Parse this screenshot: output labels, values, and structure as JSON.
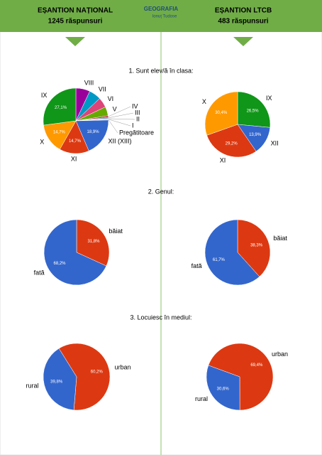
{
  "header": {
    "left": {
      "title": "EȘANTION NAȚIONAL",
      "subtitle": "1245 răspunsuri"
    },
    "logo": {
      "title": "GEOGRAFIA",
      "subtitle": "Ionuț Tudose"
    },
    "right": {
      "title": "EȘANTION LTCB",
      "subtitle": "483 răspunsuri"
    }
  },
  "sections": [
    "1. Sunt elev/ă în clasa:",
    "2. Genul:",
    "3. Locuiesc în mediul:"
  ],
  "chart_data": [
    {
      "type": "pie",
      "categories": [
        "VIII",
        "VII",
        "VI",
        "V",
        "IV",
        "III",
        "II",
        "I",
        "Pregătitoare",
        "XII (XIII)",
        "XI",
        "X",
        "IX"
      ],
      "values": [
        7,
        6,
        5,
        4.5,
        0.8,
        0.5,
        0.3,
        0.3,
        0.2,
        18.9,
        14.7,
        14.7,
        27.1
      ],
      "value_labels": [
        null,
        null,
        null,
        null,
        null,
        null,
        null,
        null,
        null,
        "18,9%",
        "14,7%",
        "14,7%",
        "27,1%"
      ],
      "colors": [
        "#990099",
        "#0099c6",
        "#dd4477",
        "#66aa00",
        "#b82e2e",
        "#316395",
        "#994499",
        "#22aa99",
        "#aaaa11",
        "#3366cc",
        "#dc3912",
        "#ff9900",
        "#109618"
      ]
    },
    {
      "type": "pie",
      "categories": [
        "IX",
        "XII",
        "XI",
        "X"
      ],
      "values": [
        26.5,
        13.9,
        29.2,
        30.4
      ],
      "value_labels": [
        "26,5%",
        "13,9%",
        "29,2%",
        "30,4%"
      ],
      "colors": [
        "#109618",
        "#3366cc",
        "#dc3912",
        "#ff9900"
      ]
    },
    {
      "type": "pie",
      "categories": [
        "băiat",
        "fată"
      ],
      "values": [
        31.8,
        68.2
      ],
      "value_labels": [
        "31,8%",
        "68,2%"
      ],
      "colors": [
        "#dc3912",
        "#3366cc"
      ]
    },
    {
      "type": "pie",
      "categories": [
        "băiat",
        "fată"
      ],
      "values": [
        38.3,
        61.7
      ],
      "value_labels": [
        "38,3%",
        "61,7%"
      ],
      "colors": [
        "#dc3912",
        "#3366cc"
      ]
    },
    {
      "type": "pie",
      "categories": [
        "urban",
        "rural"
      ],
      "values": [
        60.2,
        39.8
      ],
      "value_labels": [
        "60,2%",
        "39,8%"
      ],
      "colors": [
        "#dc3912",
        "#3366cc"
      ]
    },
    {
      "type": "pie",
      "categories": [
        "urban",
        "rural"
      ],
      "values": [
        69.4,
        30.6
      ],
      "value_labels": [
        "69,4%",
        "30,6%"
      ],
      "colors": [
        "#dc3912",
        "#3366cc"
      ]
    }
  ]
}
